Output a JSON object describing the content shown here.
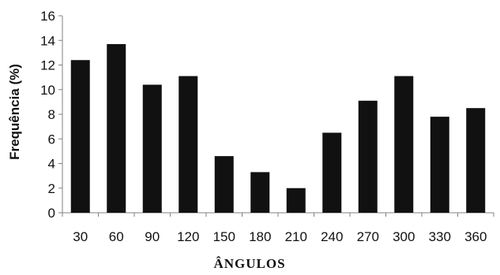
{
  "chart_data": {
    "type": "bar",
    "categories": [
      "30",
      "60",
      "90",
      "120",
      "150",
      "180",
      "210",
      "240",
      "270",
      "300",
      "330",
      "360"
    ],
    "values": [
      12.4,
      13.7,
      10.4,
      11.1,
      4.6,
      3.3,
      2.0,
      6.5,
      9.1,
      11.1,
      7.8,
      8.5
    ],
    "xlabel": "ÂNGULOS",
    "ylabel": "Frequência (%)",
    "ylim": [
      0,
      16
    ],
    "yticks": [
      "0",
      "2",
      "4",
      "6",
      "8",
      "10",
      "12",
      "14",
      "16"
    ],
    "grid": false,
    "bar_color": "#111111",
    "axis_color": "#808080"
  }
}
